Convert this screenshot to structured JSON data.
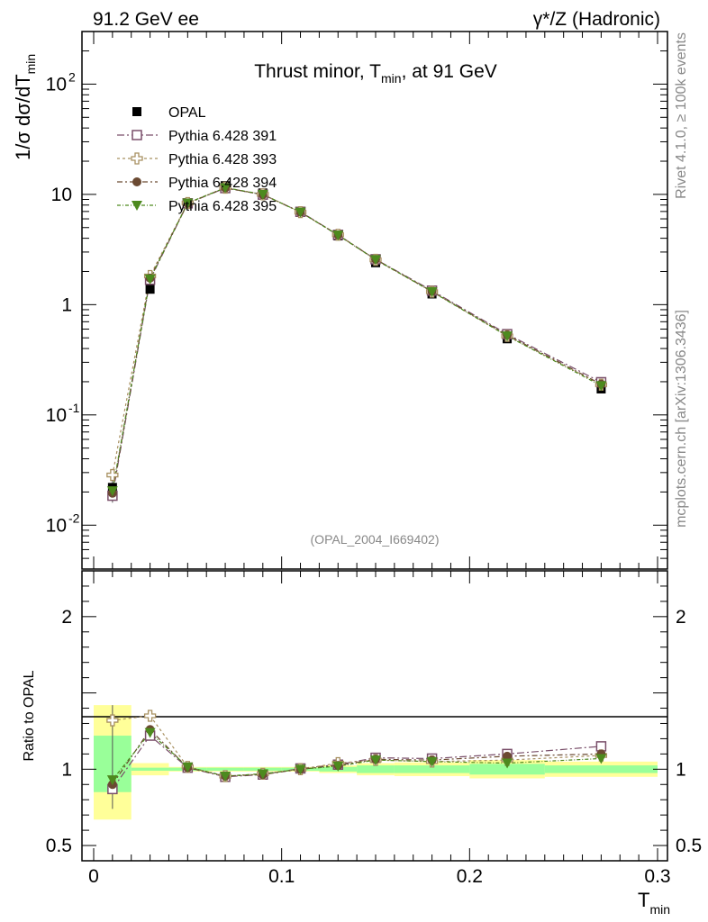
{
  "header": {
    "left": "91.2 GeV ee",
    "right": "γ*/Z (Hadronic)"
  },
  "side": {
    "rivet": "Rivet 4.1.0, ≥ 100k events",
    "mcplots": "mcplots.cern.ch [arXiv:1306.3436]"
  },
  "chart_data": {
    "type": "line",
    "title": "Thrust minor, T_min, at 91 GeV",
    "analysis_id": "(OPAL_2004_I669402)",
    "xlabel": "T_min",
    "ylabel": "1/σ dσ/dT_min",
    "xlim": [
      0,
      0.3
    ],
    "main": {
      "yscale": "log",
      "ylim": [
        0.004,
        300
      ]
    },
    "ratio": {
      "ylabel": "Ratio to OPAL",
      "ylim": [
        0.4,
        2.3
      ],
      "reference": 1
    },
    "x_ticks": [
      "0",
      "0.1",
      "0.2",
      "0.3"
    ],
    "y_ticks_main": [
      "10^-2",
      "10^-1",
      "1",
      "10",
      "10^2"
    ],
    "y_ticks_ratio": [
      "0.5",
      "1",
      "2"
    ],
    "bins": [
      0.01,
      0.03,
      0.05,
      0.07,
      0.09,
      0.11,
      0.13,
      0.15,
      0.18,
      0.22,
      0.27
    ],
    "bin_edges": [
      0,
      0.02,
      0.04,
      0.06,
      0.08,
      0.1,
      0.12,
      0.14,
      0.16,
      0.2,
      0.24,
      0.3
    ],
    "data": {
      "name": "OPAL",
      "values": [
        0.022,
        1.38,
        8.2,
        12.0,
        10.3,
        6.9,
        4.2,
        2.4,
        1.25,
        0.49,
        0.172
      ],
      "band_green": [
        [
          0.85,
          1.22
        ],
        [
          0.99,
          1.01
        ],
        [
          0.99,
          1.01
        ],
        [
          0.99,
          1.01
        ],
        [
          0.99,
          1.01
        ],
        [
          0.99,
          1.01
        ],
        [
          0.985,
          1.015
        ],
        [
          0.975,
          1.025
        ],
        [
          0.975,
          1.025
        ],
        [
          0.965,
          1.035
        ],
        [
          0.975,
          1.025
        ]
      ],
      "band_yellow": [
        [
          0.67,
          1.42
        ],
        [
          0.96,
          1.04
        ],
        [
          0.985,
          1.015
        ],
        [
          0.985,
          1.015
        ],
        [
          0.985,
          1.015
        ],
        [
          0.985,
          1.015
        ],
        [
          0.975,
          1.025
        ],
        [
          0.96,
          1.04
        ],
        [
          0.955,
          1.045
        ],
        [
          0.94,
          1.06
        ],
        [
          0.95,
          1.05
        ]
      ]
    },
    "series": [
      {
        "name": "Pythia 6.428 391",
        "color": "#7a4f6a",
        "marker": "open-square",
        "values": [
          0.0185,
          1.68,
          8.3,
          11.4,
          9.95,
          6.95,
          4.3,
          2.58,
          1.34,
          0.54,
          0.198
        ],
        "ratio": [
          0.87,
          1.22,
          1.01,
          0.95,
          0.965,
          1.005,
          1.03,
          1.075,
          1.07,
          1.1,
          1.15
        ]
      },
      {
        "name": "Pythia 6.428 393",
        "color": "#a89060",
        "marker": "open-cross",
        "values": [
          0.0285,
          1.82,
          8.35,
          11.5,
          10.0,
          6.9,
          4.3,
          2.55,
          1.31,
          0.52,
          0.188
        ],
        "ratio": [
          1.32,
          1.35,
          1.015,
          0.955,
          0.97,
          1.0,
          1.04,
          1.06,
          1.05,
          1.06,
          1.09
        ]
      },
      {
        "name": "Pythia 6.428 394",
        "color": "#6b4a32",
        "marker": "circle",
        "values": [
          0.0195,
          1.74,
          8.3,
          11.45,
          9.95,
          6.9,
          4.28,
          2.57,
          1.32,
          0.53,
          0.19
        ],
        "ratio": [
          0.9,
          1.26,
          1.01,
          0.955,
          0.965,
          1.0,
          1.025,
          1.065,
          1.06,
          1.085,
          1.1
        ]
      },
      {
        "name": "Pythia 6.428 395",
        "color": "#4d8a1e",
        "marker": "triangle-down",
        "values": [
          0.0205,
          1.71,
          8.35,
          11.5,
          10.0,
          6.9,
          4.27,
          2.56,
          1.31,
          0.52,
          0.184
        ],
        "ratio": [
          0.93,
          1.24,
          1.015,
          0.955,
          0.97,
          1.0,
          1.02,
          1.06,
          1.05,
          1.04,
          1.07
        ]
      }
    ]
  }
}
